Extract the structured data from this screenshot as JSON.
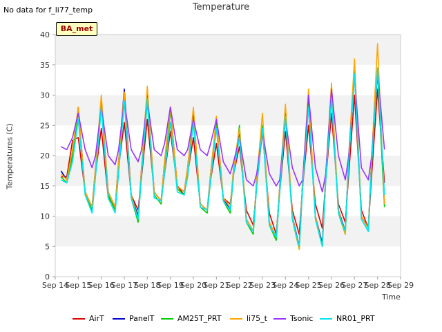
{
  "no_data_note": "No data for f_li77_temp",
  "badge_text": "BA_met",
  "chart_data": {
    "type": "line",
    "title": "Temperature",
    "xlabel": "Time",
    "ylabel": "Temperatures (C)",
    "ylim": [
      0,
      40
    ],
    "yticks": [
      0,
      5,
      10,
      15,
      20,
      25,
      30,
      35,
      40
    ],
    "xlim": [
      14,
      29
    ],
    "xticks": [
      {
        "x": 14,
        "label": "Sep 14"
      },
      {
        "x": 15,
        "label": "Sep 15"
      },
      {
        "x": 16,
        "label": "Sep 16"
      },
      {
        "x": 17,
        "label": "Sep 17"
      },
      {
        "x": 18,
        "label": "Sep 18"
      },
      {
        "x": 19,
        "label": "Sep 19"
      },
      {
        "x": 20,
        "label": "Sep 20"
      },
      {
        "x": 21,
        "label": "Sep 21"
      },
      {
        "x": 22,
        "label": "Sep 22"
      },
      {
        "x": 23,
        "label": "Sep 23"
      },
      {
        "x": 24,
        "label": "Sep 24"
      },
      {
        "x": 25,
        "label": "Sep 25"
      },
      {
        "x": 26,
        "label": "Sep 26"
      },
      {
        "x": 27,
        "label": "Sep 27"
      },
      {
        "x": 28,
        "label": "Sep 28"
      },
      {
        "x": 29,
        "label": "Sep 29"
      }
    ],
    "grid": "horizontal bands",
    "band_color": "#f2f2f2",
    "legend_position": "bottom",
    "series": [
      {
        "name": "AirT",
        "color": "#dd0000",
        "x": [
          14.25,
          14.5,
          14.75,
          15.0,
          15.3,
          15.6,
          15.75,
          16.0,
          16.3,
          16.6,
          16.75,
          17.0,
          17.3,
          17.6,
          17.75,
          18.0,
          18.3,
          18.6,
          18.75,
          19.0,
          19.3,
          19.6,
          19.75,
          20.0,
          20.3,
          20.6,
          20.75,
          21.0,
          21.3,
          21.6,
          21.75,
          22.0,
          22.3,
          22.6,
          22.75,
          23.0,
          23.3,
          23.6,
          23.75,
          24.0,
          24.3,
          24.6,
          24.75,
          25.0,
          25.3,
          25.6,
          25.75,
          26.0,
          26.3,
          26.6,
          26.75,
          27.0,
          27.3,
          27.6,
          27.75,
          28.0,
          28.3
        ],
        "y": [
          16.5,
          16.5,
          22.5,
          23,
          14,
          11.5,
          17,
          24.5,
          13,
          11.5,
          18,
          25.5,
          13.5,
          11,
          16.5,
          26,
          14,
          12.5,
          17,
          24,
          15,
          13.5,
          17,
          23,
          12,
          11,
          16,
          22,
          13,
          12,
          17,
          21.5,
          11,
          8.5,
          15,
          24,
          10.5,
          7,
          14,
          24,
          11,
          7,
          15,
          25,
          12,
          8,
          16,
          27,
          12,
          9,
          17,
          30,
          11,
          8,
          17,
          31,
          15.5
        ]
      },
      {
        "name": "PanelT",
        "color": "#0000cc",
        "x": [
          14.25,
          14.5,
          14.75,
          15.0,
          15.3,
          15.6,
          15.75,
          16.0,
          16.3,
          16.6,
          16.75,
          17.0,
          17.3,
          17.6,
          17.75,
          18.0,
          18.3,
          18.6,
          18.75,
          19.0,
          19.3,
          19.6,
          19.75,
          20.0,
          20.3,
          20.6,
          20.75,
          21.0,
          21.3,
          21.6,
          21.75,
          22.0,
          22.3,
          22.6,
          22.75,
          23.0,
          23.3,
          23.6,
          23.75,
          24.0,
          24.3,
          24.6,
          24.75,
          25.0,
          25.3,
          25.6,
          25.75,
          26.0,
          26.3,
          26.6,
          26.75,
          27.0,
          27.3,
          27.6,
          27.75,
          28.0,
          28.3
        ],
        "y": [
          17.5,
          16,
          20,
          28,
          14,
          11.5,
          18,
          29,
          14,
          11.5,
          19,
          31,
          13.5,
          10,
          18,
          30,
          14,
          12.5,
          19,
          28,
          15,
          14,
          18,
          27,
          12,
          11,
          17,
          26,
          13,
          11,
          18,
          24,
          9.5,
          7.5,
          16,
          25,
          9,
          6.5,
          15,
          27,
          10,
          5,
          16,
          29,
          10,
          5.5,
          17,
          30,
          11,
          7.5,
          20,
          34,
          10,
          8,
          20,
          34,
          12
        ]
      },
      {
        "name": "AM25T_PRT",
        "color": "#00cc00",
        "x": [
          14.25,
          14.5,
          14.75,
          15.0,
          15.3,
          15.6,
          15.75,
          16.0,
          16.3,
          16.6,
          16.75,
          17.0,
          17.3,
          17.6,
          17.75,
          18.0,
          18.3,
          18.6,
          18.75,
          19.0,
          19.3,
          19.6,
          19.75,
          20.0,
          20.3,
          20.6,
          20.75,
          21.0,
          21.3,
          21.6,
          21.75,
          22.0,
          22.3,
          22.6,
          22.75,
          23.0,
          23.3,
          23.6,
          23.75,
          24.0,
          24.3,
          24.6,
          24.75,
          25.0,
          25.3,
          25.6,
          25.75,
          26.0,
          26.3,
          26.6,
          26.75,
          27.0,
          27.3,
          27.6,
          27.75,
          28.0,
          28.3
        ],
        "y": [
          16.5,
          15.5,
          20,
          27.5,
          13.5,
          11,
          17,
          28.5,
          13.5,
          11,
          18,
          30,
          13,
          9,
          17,
          29,
          13.5,
          12,
          18,
          27.5,
          14.5,
          13.5,
          17,
          26,
          11.5,
          10.5,
          16,
          25,
          12.5,
          10.5,
          17,
          25,
          9,
          7,
          15,
          25,
          8.5,
          6,
          14,
          26.5,
          9.5,
          4.5,
          15,
          28.5,
          9.5,
          5,
          16,
          30,
          10.5,
          7,
          19,
          34,
          9.5,
          7.5,
          19,
          34,
          11.5
        ]
      },
      {
        "name": "li75_t",
        "color": "#ffa500",
        "x": [
          14.25,
          14.5,
          14.75,
          15.0,
          15.3,
          15.6,
          15.75,
          16.0,
          16.3,
          16.6,
          16.75,
          17.0,
          17.3,
          17.6,
          17.75,
          18.0,
          18.3,
          18.6,
          18.75,
          19.0,
          19.3,
          19.6,
          19.75,
          20.0,
          20.3,
          20.6,
          20.75,
          21.0,
          21.3,
          21.6,
          21.75,
          22.0,
          22.3,
          22.6,
          22.75,
          23.0,
          23.3,
          23.6,
          23.75,
          24.0,
          24.3,
          24.6,
          24.75,
          25.0,
          25.3,
          25.6,
          25.75,
          26.0,
          26.3,
          26.6,
          26.75,
          27.0,
          27.3,
          27.6,
          27.75,
          28.0,
          28.3
        ],
        "y": [
          17,
          16,
          21,
          28,
          14,
          11.5,
          18,
          30,
          14,
          11.5,
          19,
          30.5,
          13.5,
          9.5,
          18,
          31.5,
          14,
          12.5,
          19,
          28,
          15,
          14,
          18,
          28,
          12,
          11,
          17,
          26.5,
          13,
          11.5,
          18,
          24.5,
          9.5,
          7.5,
          16,
          27,
          9,
          6.5,
          15,
          28.5,
          10,
          4.5,
          16,
          31,
          10,
          5,
          17,
          32,
          11,
          7,
          20,
          36,
          10,
          8,
          20,
          38.5,
          12
        ]
      },
      {
        "name": "Tsonic",
        "color": "#9933ff",
        "x": [
          14.25,
          14.5,
          14.75,
          15.0,
          15.3,
          15.6,
          15.75,
          16.0,
          16.3,
          16.6,
          16.75,
          17.0,
          17.3,
          17.6,
          17.75,
          18.0,
          18.3,
          18.6,
          18.75,
          19.0,
          19.3,
          19.6,
          19.75,
          20.0,
          20.3,
          20.6,
          20.75,
          21.0,
          21.3,
          21.6,
          21.75,
          22.0,
          22.3,
          22.6,
          22.75,
          23.0,
          23.3,
          23.6,
          23.75,
          24.0,
          24.3,
          24.6,
          24.75,
          25.0,
          25.3,
          25.6,
          25.75,
          26.0,
          26.3,
          26.6,
          26.75,
          27.0,
          27.3,
          27.6,
          27.75,
          28.0,
          28.3
        ],
        "y": [
          21.5,
          21,
          23,
          27,
          21,
          18,
          20,
          28,
          20,
          18.5,
          21,
          29,
          21,
          19,
          21,
          29,
          21,
          20,
          22,
          28,
          21,
          20,
          21,
          26,
          21,
          20,
          22,
          26,
          19,
          17,
          19,
          23,
          16,
          15,
          17,
          24,
          17,
          15,
          16,
          26,
          18,
          15,
          16,
          30,
          18,
          14,
          17,
          31,
          20,
          16,
          20,
          33,
          18,
          16,
          20,
          34,
          21
        ]
      },
      {
        "name": "NR01_PRT",
        "color": "#00e5ee",
        "x": [
          14.25,
          14.5,
          14.75,
          15.0,
          15.3,
          15.6,
          15.75,
          16.0,
          16.3,
          16.6,
          16.75,
          17.0,
          17.3,
          17.6,
          17.75,
          18.0,
          18.3,
          18.6,
          18.75,
          19.0,
          19.3,
          19.6,
          19.75,
          20.0,
          20.3,
          20.6,
          20.75,
          21.0,
          21.3,
          21.6,
          21.75,
          22.0,
          22.3,
          22.6,
          22.75,
          23.0,
          23.3,
          23.6,
          23.75,
          24.0,
          24.3,
          24.6,
          24.75,
          25.0,
          25.3,
          25.6,
          25.75,
          26.0,
          26.3,
          26.6,
          26.75,
          27.0,
          27.3,
          27.6,
          27.75,
          28.0,
          28.3
        ],
        "y": [
          16,
          15.5,
          19,
          26,
          13.5,
          10.5,
          16.5,
          28,
          13,
          10.5,
          17,
          29,
          13,
          9.5,
          17,
          29.5,
          13,
          12.5,
          17,
          25.5,
          14,
          13.5,
          16.5,
          25.5,
          11.5,
          11,
          16,
          24.5,
          12.5,
          11,
          17,
          23,
          9,
          7.5,
          15,
          24.5,
          8.5,
          6.5,
          14,
          26.5,
          9.5,
          5,
          15,
          28,
          9.5,
          5,
          16,
          29.5,
          10.5,
          7.5,
          19,
          33.5,
          9.5,
          7.5,
          19,
          34.5,
          13.5
        ]
      }
    ]
  }
}
